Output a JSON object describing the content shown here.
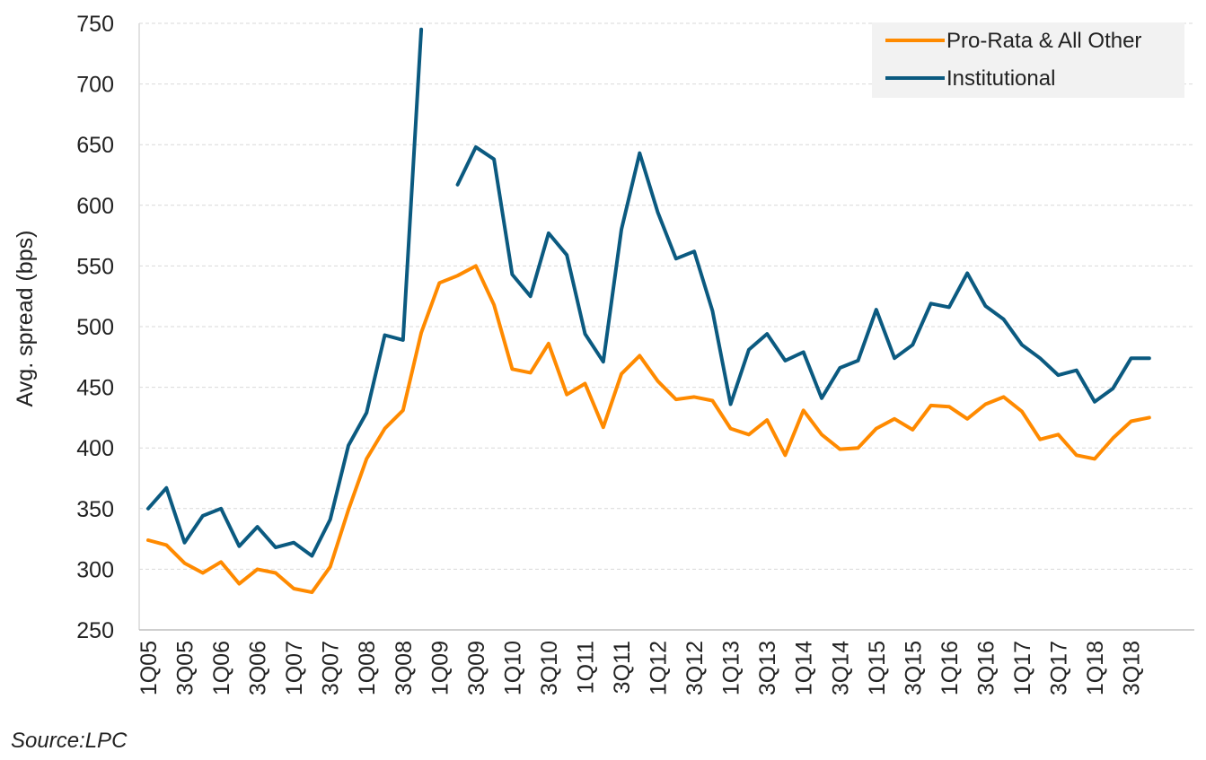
{
  "chart_data": {
    "type": "line",
    "ylabel": "Avg. spread (bps)",
    "xlabel": "",
    "ylim": [
      250,
      750
    ],
    "yticks": [
      250,
      300,
      350,
      400,
      450,
      500,
      550,
      600,
      650,
      700,
      750
    ],
    "grid": true,
    "legend_position": "top-right",
    "categories": [
      "1Q05",
      "2Q05",
      "3Q05",
      "4Q05",
      "1Q06",
      "2Q06",
      "3Q06",
      "4Q06",
      "1Q07",
      "2Q07",
      "3Q07",
      "4Q07",
      "1Q08",
      "2Q08",
      "3Q08",
      "4Q08",
      "1Q09",
      "2Q09",
      "3Q09",
      "4Q09",
      "1Q10",
      "2Q10",
      "3Q10",
      "4Q10",
      "1Q11",
      "2Q11",
      "3Q11",
      "4Q11",
      "1Q12",
      "2Q12",
      "3Q12",
      "4Q12",
      "1Q13",
      "2Q13",
      "3Q13",
      "4Q13",
      "1Q14",
      "2Q14",
      "3Q14",
      "4Q14",
      "1Q15",
      "2Q15",
      "3Q15",
      "4Q15",
      "1Q16",
      "2Q16",
      "3Q16",
      "4Q16",
      "1Q17",
      "2Q17",
      "3Q17",
      "4Q17",
      "1Q18",
      "2Q18",
      "3Q18",
      "4Q18"
    ],
    "tick_labels": [
      "1Q05",
      "3Q05",
      "1Q06",
      "3Q06",
      "1Q07",
      "3Q07",
      "1Q08",
      "3Q08",
      "1Q09",
      "3Q09",
      "1Q10",
      "3Q10",
      "1Q11",
      "3Q11",
      "1Q12",
      "3Q12",
      "1Q13",
      "3Q13",
      "1Q14",
      "3Q14",
      "1Q15",
      "3Q15",
      "1Q16",
      "3Q16",
      "1Q17",
      "3Q17",
      "1Q18",
      "3Q18"
    ],
    "series": [
      {
        "name": "Pro-Rata & All Other",
        "color": "#ff8a00",
        "values": [
          324,
          320,
          305,
          297,
          306,
          288,
          300,
          297,
          284,
          281,
          302,
          349,
          391,
          416,
          431,
          495,
          536,
          542,
          550,
          518,
          465,
          462,
          486,
          444,
          453,
          417,
          461,
          476,
          455,
          440,
          442,
          439,
          416,
          411,
          423,
          394,
          431,
          411,
          399,
          400,
          416,
          424,
          415,
          435,
          434,
          424,
          436,
          442,
          430,
          407,
          411,
          394,
          391,
          408,
          422,
          425
        ]
      },
      {
        "name": "Institutional",
        "color": "#0b5a80",
        "values": [
          350,
          367,
          322,
          344,
          350,
          319,
          335,
          318,
          322,
          311,
          341,
          402,
          429,
          493,
          489,
          745,
          null,
          617,
          648,
          638,
          543,
          525,
          577,
          559,
          494,
          471,
          580,
          643,
          594,
          556,
          562,
          513,
          436,
          481,
          494,
          472,
          479,
          441,
          466,
          472,
          514,
          474,
          485,
          519,
          516,
          544,
          517,
          506,
          485,
          474,
          460,
          464,
          438,
          449,
          474,
          474
        ]
      }
    ]
  },
  "source": "Source:LPC"
}
